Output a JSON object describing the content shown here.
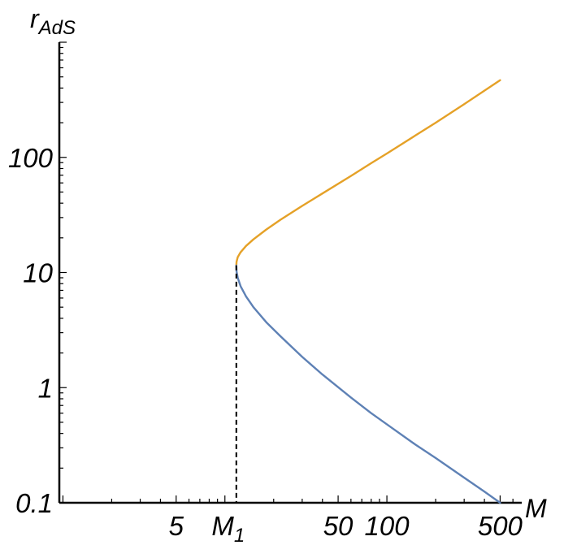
{
  "chart_data": {
    "type": "line",
    "title": "",
    "xlabel": "M",
    "ylabel_main": "r",
    "ylabel_sub": "AdS",
    "x_scale": "log",
    "y_scale": "log",
    "xlim": [
      0.95,
      680
    ],
    "ylim": [
      0.1,
      1000
    ],
    "grid": false,
    "x_ticks": [
      {
        "value": 5,
        "label": "5"
      },
      {
        "value": 50,
        "label": "50"
      },
      {
        "value": 100,
        "label": "100"
      },
      {
        "value": 500,
        "label": "500"
      }
    ],
    "x_marker": {
      "value": 11.76,
      "label_main": "M",
      "label_sub": "1",
      "style": "dashed"
    },
    "y_ticks": [
      {
        "value": 0.1,
        "label": "0.1"
      },
      {
        "value": 1,
        "label": "1"
      },
      {
        "value": 10,
        "label": "10"
      },
      {
        "value": 100,
        "label": "100"
      }
    ],
    "series": [
      {
        "color": "#e5a127",
        "points": [
          [
            11.76,
            11.5
          ],
          [
            11.8,
            12.4
          ],
          [
            12.0,
            13.6
          ],
          [
            12.5,
            15.0
          ],
          [
            13.5,
            17.0
          ],
          [
            15.0,
            19.4
          ],
          [
            18.0,
            23.6
          ],
          [
            22.0,
            28.7
          ],
          [
            30.0,
            37.9
          ],
          [
            40.0,
            48.6
          ],
          [
            60.0,
            69.0
          ],
          [
            80.0,
            89.0
          ],
          [
            100.0,
            108.0
          ],
          [
            150.0,
            155.0
          ],
          [
            200.0,
            200.0
          ],
          [
            300.0,
            290.0
          ],
          [
            400.0,
            380.0
          ],
          [
            500.0,
            468.0
          ]
        ]
      },
      {
        "color": "#5e81b5",
        "points": [
          [
            11.76,
            11.5
          ],
          [
            11.8,
            10.2
          ],
          [
            12.0,
            9.0
          ],
          [
            12.5,
            7.6
          ],
          [
            13.5,
            6.2
          ],
          [
            15.0,
            5.0
          ],
          [
            18.0,
            3.7
          ],
          [
            22.0,
            2.8
          ],
          [
            30.0,
            1.85
          ],
          [
            40.0,
            1.3
          ],
          [
            60.0,
            0.82
          ],
          [
            80.0,
            0.6
          ],
          [
            100.0,
            0.48
          ],
          [
            150.0,
            0.32
          ],
          [
            200.0,
            0.245
          ],
          [
            300.0,
            0.165
          ],
          [
            400.0,
            0.125
          ],
          [
            500.0,
            0.1
          ]
        ]
      }
    ]
  }
}
